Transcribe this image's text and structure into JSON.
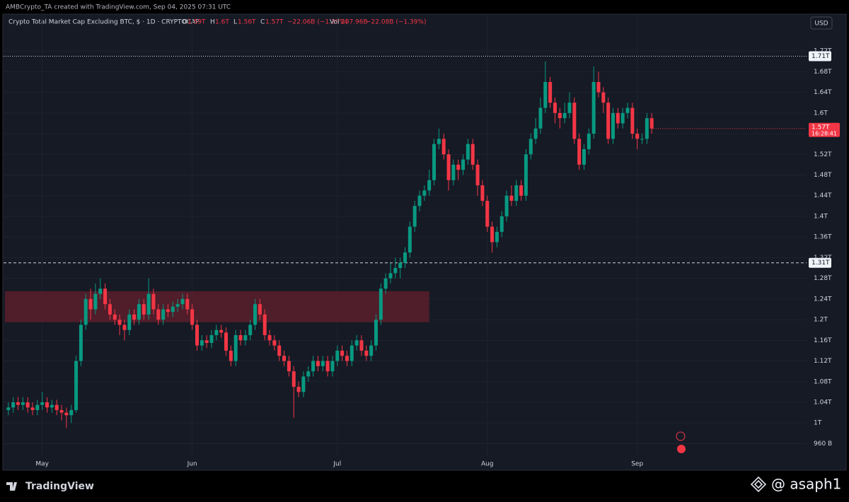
{
  "watermark_top": "AMBCrypto_TA created with TradingView.com, Sep 04, 2025 07:31 UTC",
  "header": {
    "symbol": "Crypto Total Market Cap Excluding BTC, $ · 1D · CRYPTOCAP",
    "o_label": "O",
    "o_value": "1.59T",
    "h_label": "H",
    "h_value": "1.6T",
    "l_label": "L",
    "l_value": "1.56T",
    "c_label": "C",
    "c_value": "1.57T",
    "change": "−22.06B (−1.39%)",
    "vol_label": "Vol",
    "vol_value": "207.96B",
    "vol_change": "−22.08B (−1.39%)"
  },
  "currency": "USD",
  "brand": "TradingView",
  "author": "@ asaph1",
  "chart_data": {
    "type": "candlestick",
    "up_color": "#089981",
    "down_color": "#f23645",
    "open": [
      1.025,
      1.03,
      1.04,
      1.035,
      1.04,
      1.03,
      1.025,
      1.035,
      1.04,
      1.03,
      1.035,
      1.025,
      1.02,
      1.015,
      1.025,
      1.12,
      1.19,
      1.24,
      1.22,
      1.25,
      1.26,
      1.23,
      1.21,
      1.2,
      1.19,
      1.18,
      1.21,
      1.2,
      1.23,
      1.21,
      1.25,
      1.22,
      1.2,
      1.22,
      1.215,
      1.225,
      1.23,
      1.24,
      1.22,
      1.19,
      1.15,
      1.16,
      1.155,
      1.17,
      1.18,
      1.175,
      1.14,
      1.12,
      1.17,
      1.16,
      1.17,
      1.19,
      1.23,
      1.21,
      1.17,
      1.16,
      1.15,
      1.13,
      1.12,
      1.1,
      1.07,
      1.06,
      1.09,
      1.1,
      1.12,
      1.11,
      1.12,
      1.1,
      1.12,
      1.14,
      1.13,
      1.12,
      1.15,
      1.16,
      1.14,
      1.13,
      1.15,
      1.2,
      1.26,
      1.28,
      1.29,
      1.3,
      1.31,
      1.33,
      1.38,
      1.42,
      1.44,
      1.45,
      1.47,
      1.54,
      1.55,
      1.52,
      1.47,
      1.5,
      1.49,
      1.51,
      1.54,
      1.5,
      1.46,
      1.43,
      1.38,
      1.35,
      1.37,
      1.4,
      1.44,
      1.43,
      1.46,
      1.44,
      1.52,
      1.55,
      1.57,
      1.61,
      1.66,
      1.62,
      1.6,
      1.59,
      1.6,
      1.62,
      1.55,
      1.5,
      1.53,
      1.56,
      1.66,
      1.64,
      1.62,
      1.55,
      1.6,
      1.58,
      1.6,
      1.61,
      1.56,
      1.55,
      1.55,
      1.59
    ],
    "high": [
      1.04,
      1.05,
      1.05,
      1.05,
      1.05,
      1.04,
      1.045,
      1.06,
      1.05,
      1.045,
      1.045,
      1.035,
      1.03,
      1.035,
      1.13,
      1.2,
      1.25,
      1.26,
      1.27,
      1.28,
      1.27,
      1.24,
      1.22,
      1.21,
      1.2,
      1.22,
      1.22,
      1.24,
      1.24,
      1.28,
      1.26,
      1.23,
      1.23,
      1.23,
      1.235,
      1.24,
      1.25,
      1.25,
      1.23,
      1.2,
      1.17,
      1.17,
      1.18,
      1.19,
      1.19,
      1.185,
      1.15,
      1.18,
      1.18,
      1.18,
      1.2,
      1.24,
      1.24,
      1.22,
      1.18,
      1.17,
      1.16,
      1.14,
      1.13,
      1.11,
      1.08,
      1.1,
      1.11,
      1.13,
      1.13,
      1.13,
      1.13,
      1.13,
      1.15,
      1.15,
      1.14,
      1.16,
      1.17,
      1.17,
      1.15,
      1.16,
      1.21,
      1.27,
      1.29,
      1.31,
      1.32,
      1.32,
      1.34,
      1.39,
      1.43,
      1.45,
      1.46,
      1.49,
      1.55,
      1.57,
      1.56,
      1.53,
      1.51,
      1.51,
      1.52,
      1.55,
      1.55,
      1.51,
      1.47,
      1.44,
      1.39,
      1.38,
      1.41,
      1.45,
      1.46,
      1.47,
      1.47,
      1.53,
      1.56,
      1.59,
      1.63,
      1.7,
      1.67,
      1.63,
      1.61,
      1.62,
      1.64,
      1.63,
      1.56,
      1.54,
      1.57,
      1.69,
      1.68,
      1.65,
      1.63,
      1.61,
      1.61,
      1.61,
      1.62,
      1.62,
      1.57,
      1.56,
      1.6,
      1.6
    ],
    "low": [
      1.015,
      1.02,
      1.025,
      1.025,
      1.02,
      1.015,
      1.015,
      1.025,
      1.02,
      1.02,
      1.015,
      1.005,
      0.99,
      1.0,
      1.02,
      1.11,
      1.18,
      1.2,
      1.21,
      1.24,
      1.22,
      1.2,
      1.19,
      1.17,
      1.16,
      1.17,
      1.19,
      1.19,
      1.2,
      1.2,
      1.21,
      1.19,
      1.19,
      1.205,
      1.205,
      1.215,
      1.22,
      1.21,
      1.18,
      1.14,
      1.14,
      1.145,
      1.145,
      1.16,
      1.165,
      1.13,
      1.11,
      1.11,
      1.15,
      1.15,
      1.16,
      1.18,
      1.2,
      1.16,
      1.15,
      1.14,
      1.12,
      1.11,
      1.09,
      1.01,
      1.05,
      1.05,
      1.08,
      1.09,
      1.1,
      1.1,
      1.09,
      1.09,
      1.11,
      1.12,
      1.11,
      1.11,
      1.14,
      1.13,
      1.12,
      1.12,
      1.14,
      1.19,
      1.25,
      1.27,
      1.28,
      1.28,
      1.3,
      1.32,
      1.37,
      1.41,
      1.43,
      1.44,
      1.46,
      1.53,
      1.51,
      1.45,
      1.46,
      1.47,
      1.48,
      1.5,
      1.49,
      1.44,
      1.42,
      1.37,
      1.33,
      1.34,
      1.36,
      1.39,
      1.42,
      1.42,
      1.43,
      1.43,
      1.51,
      1.54,
      1.56,
      1.6,
      1.61,
      1.58,
      1.57,
      1.58,
      1.59,
      1.54,
      1.49,
      1.49,
      1.52,
      1.55,
      1.63,
      1.6,
      1.54,
      1.54,
      1.57,
      1.57,
      1.59,
      1.55,
      1.53,
      1.54,
      1.54,
      1.56
    ],
    "close": [
      1.03,
      1.04,
      1.035,
      1.04,
      1.03,
      1.025,
      1.035,
      1.04,
      1.03,
      1.035,
      1.025,
      1.02,
      1.015,
      1.025,
      1.12,
      1.19,
      1.24,
      1.22,
      1.25,
      1.26,
      1.23,
      1.21,
      1.2,
      1.19,
      1.18,
      1.21,
      1.2,
      1.23,
      1.21,
      1.25,
      1.22,
      1.2,
      1.22,
      1.215,
      1.225,
      1.23,
      1.24,
      1.22,
      1.19,
      1.15,
      1.16,
      1.155,
      1.17,
      1.18,
      1.175,
      1.14,
      1.12,
      1.17,
      1.16,
      1.17,
      1.19,
      1.23,
      1.21,
      1.17,
      1.16,
      1.15,
      1.13,
      1.12,
      1.1,
      1.07,
      1.06,
      1.09,
      1.1,
      1.12,
      1.11,
      1.12,
      1.1,
      1.12,
      1.14,
      1.13,
      1.12,
      1.15,
      1.16,
      1.14,
      1.13,
      1.15,
      1.2,
      1.26,
      1.28,
      1.29,
      1.3,
      1.31,
      1.33,
      1.38,
      1.42,
      1.44,
      1.45,
      1.47,
      1.54,
      1.55,
      1.52,
      1.47,
      1.5,
      1.49,
      1.51,
      1.54,
      1.5,
      1.46,
      1.43,
      1.38,
      1.35,
      1.37,
      1.4,
      1.44,
      1.43,
      1.46,
      1.44,
      1.52,
      1.55,
      1.57,
      1.61,
      1.66,
      1.62,
      1.6,
      1.59,
      1.6,
      1.62,
      1.55,
      1.5,
      1.53,
      1.56,
      1.66,
      1.64,
      1.62,
      1.55,
      1.6,
      1.58,
      1.6,
      1.61,
      1.56,
      1.55,
      1.55,
      1.59,
      1.57
    ],
    "xlim": [
      -1,
      165
    ],
    "xticks": [
      {
        "value": 7,
        "label": "May"
      },
      {
        "value": 38,
        "label": "Jun"
      },
      {
        "value": 68,
        "label": "Jul"
      },
      {
        "value": 99,
        "label": "Aug"
      },
      {
        "value": 130,
        "label": "Sep"
      }
    ],
    "ylim": [
      0.91,
      1.79
    ],
    "yticks": [
      {
        "value": 0.96,
        "label": "960 B"
      },
      {
        "value": 1,
        "label": "1T"
      },
      {
        "value": 1.04,
        "label": "1.04T"
      },
      {
        "value": 1.08,
        "label": "1.08T"
      },
      {
        "value": 1.12,
        "label": "1.12T"
      },
      {
        "value": 1.16,
        "label": "1.16T"
      },
      {
        "value": 1.2,
        "label": "1.2T"
      },
      {
        "value": 1.24,
        "label": "1.24T"
      },
      {
        "value": 1.28,
        "label": "1.28T"
      },
      {
        "value": 1.32,
        "label": "1.32T"
      },
      {
        "value": 1.36,
        "label": "1.36T"
      },
      {
        "value": 1.4,
        "label": "1.4T"
      },
      {
        "value": 1.44,
        "label": "1.44T"
      },
      {
        "value": 1.48,
        "label": "1.48T"
      },
      {
        "value": 1.52,
        "label": "1.52T"
      },
      {
        "value": 1.56,
        "label": "1.56T"
      },
      {
        "value": 1.6,
        "label": "1.6T"
      },
      {
        "value": 1.64,
        "label": "1.64T"
      },
      {
        "value": 1.68,
        "label": "1.68T"
      },
      {
        "value": 1.72,
        "label": "1.72T"
      }
    ],
    "grid": true,
    "price_lines": [
      {
        "value": 1.71,
        "label": "1.71T",
        "style": "dotted"
      },
      {
        "value": 1.31,
        "label": "1.31T",
        "style": "dashed"
      }
    ],
    "last_price": {
      "value": 1.57,
      "label": "1.57T",
      "countdown": "16:28:41"
    },
    "zone": {
      "low": 1.195,
      "high": 1.255,
      "end": 87,
      "color": "#5a1e2b"
    }
  }
}
